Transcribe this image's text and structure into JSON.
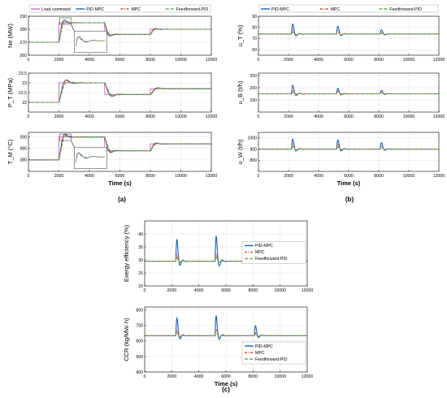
{
  "panel_labels": [
    "(a)",
    "(b)",
    "(c)"
  ],
  "chart_data": [
    {
      "id": "ne",
      "type": "line",
      "group": "a",
      "xlabel": "",
      "ylabel": "Ne (MW)",
      "xlim": [
        0,
        12000
      ],
      "ylim": [
        260,
        290
      ],
      "xticks": [
        0,
        2000,
        4000,
        6000,
        8000,
        10000,
        12000
      ],
      "yticks": [
        260,
        270,
        280,
        290
      ],
      "grid": true,
      "legend": "top",
      "inset": true,
      "steps": [
        [
          0,
          270
        ],
        [
          2000,
          285
        ],
        [
          5000,
          276
        ],
        [
          8000,
          280
        ]
      ],
      "series": [
        {
          "name": "Load command",
          "color": "#d066d0",
          "dash": "",
          "style": "command"
        },
        {
          "name": "PID-MPC",
          "color": "#1f5fb4",
          "dash": "",
          "style": "resp",
          "lag": 180,
          "over": 0.22
        },
        {
          "name": "MPC",
          "color": "#c8502c",
          "dash": "3,1.5,1,1.5",
          "style": "resp",
          "lag": 160,
          "over": 0.12
        },
        {
          "name": "Feedforward-PID",
          "color": "#6aa84f",
          "dash": "4,2",
          "style": "resp",
          "lag": 220,
          "over": 0.06
        }
      ]
    },
    {
      "id": "pt",
      "type": "line",
      "group": "a",
      "xlabel": "",
      "ylabel": "P_T (MPa)",
      "xlim": [
        0,
        12000
      ],
      "ylim": [
        21.5,
        23.5
      ],
      "xticks": [
        0,
        2000,
        4000,
        6000,
        8000,
        10000,
        12000
      ],
      "yticks": [
        22,
        22.5,
        23,
        23.5
      ],
      "grid": true,
      "steps": [
        [
          0,
          22
        ],
        [
          2000,
          23
        ],
        [
          5000,
          22.4
        ],
        [
          8000,
          22.7
        ]
      ],
      "series": [
        {
          "name": "Load command",
          "color": "#d066d0",
          "dash": "",
          "style": "command"
        },
        {
          "name": "PID-MPC",
          "color": "#1f5fb4",
          "dash": "",
          "style": "resp",
          "lag": 250,
          "over": 0.25
        },
        {
          "name": "MPC",
          "color": "#c8502c",
          "dash": "3,1.5,1,1.5",
          "style": "resp",
          "lag": 230,
          "over": 0.12
        },
        {
          "name": "Feedforward-PID",
          "color": "#6aa84f",
          "dash": "4,2",
          "style": "resp",
          "lag": 300,
          "over": 0.05
        }
      ]
    },
    {
      "id": "tm",
      "type": "line",
      "group": "a",
      "xlabel": "Time (s)",
      "ylabel": "T_M (°C)",
      "xlim": [
        0,
        12000
      ],
      "ylim": [
        375,
        392
      ],
      "xticks": [
        0,
        2000,
        4000,
        6000,
        8000,
        10000,
        12000
      ],
      "yticks": [
        380,
        385,
        390
      ],
      "grid": true,
      "inset": true,
      "steps": [
        [
          0,
          380
        ],
        [
          2000,
          390
        ],
        [
          5000,
          384
        ],
        [
          8000,
          387
        ]
      ],
      "series": [
        {
          "name": "Load command",
          "color": "#d066d0",
          "dash": "",
          "style": "command"
        },
        {
          "name": "PID-MPC",
          "color": "#1f5fb4",
          "dash": "",
          "style": "resp",
          "lag": 200,
          "over": 0.15
        },
        {
          "name": "MPC",
          "color": "#c8502c",
          "dash": "3,1.5,1,1.5",
          "style": "resp",
          "lag": 190,
          "over": 0.08
        },
        {
          "name": "Feedforward-PID",
          "color": "#6aa84f",
          "dash": "4,2",
          "style": "resp",
          "lag": 260,
          "over": 0.04
        }
      ]
    },
    {
      "id": "ut",
      "type": "line",
      "group": "b",
      "xlabel": "",
      "ylabel": "u_T (%)",
      "xlim": [
        0,
        12000
      ],
      "ylim": [
        55,
        90
      ],
      "xticks": [
        0,
        2000,
        4000,
        6000,
        8000,
        10000,
        12000
      ],
      "yticks": [
        60,
        70,
        80,
        90
      ],
      "grid": true,
      "legend": "top",
      "base": 74,
      "spikes": [
        [
          2200,
          14
        ],
        [
          5200,
          11
        ],
        [
          8100,
          6
        ]
      ],
      "series": [
        {
          "name": "PID-MPC",
          "color": "#1f5fb4",
          "dash": "",
          "style": "spike",
          "amp": 1.0
        },
        {
          "name": "MPC",
          "color": "#c8502c",
          "dash": "3,1.5,1,1.5",
          "style": "spike",
          "amp": 0.45
        },
        {
          "name": "Feedforward-PID",
          "color": "#6aa84f",
          "dash": "4,2",
          "style": "spike",
          "amp": 0.2
        }
      ]
    },
    {
      "id": "ub",
      "type": "line",
      "group": "b",
      "xlabel": "",
      "ylabel": "u_B (t/h)",
      "xlim": [
        0,
        12000
      ],
      "ylim": [
        100,
        260
      ],
      "xticks": [
        0,
        2000,
        4000,
        6000,
        8000,
        10000,
        12000
      ],
      "yticks": [
        150,
        200,
        250
      ],
      "grid": true,
      "base": 175,
      "spikes": [
        [
          2200,
          55
        ],
        [
          5200,
          35
        ],
        [
          8100,
          22
        ]
      ],
      "series": [
        {
          "name": "PID-MPC",
          "color": "#1f5fb4",
          "dash": "",
          "style": "spike",
          "amp": 1.0
        },
        {
          "name": "MPC",
          "color": "#c8502c",
          "dash": "3,1.5,1,1.5",
          "style": "spike",
          "amp": 0.45
        },
        {
          "name": "Feedforward-PID",
          "color": "#6aa84f",
          "dash": "4,2",
          "style": "spike",
          "amp": 0.2
        }
      ]
    },
    {
      "id": "uw",
      "type": "line",
      "group": "b",
      "xlabel": "Time (s)",
      "ylabel": "u_W (t/h)",
      "xlim": [
        0,
        12000
      ],
      "ylim": [
        700,
        1050
      ],
      "xticks": [
        0,
        2000,
        4000,
        6000,
        8000,
        10000,
        12000
      ],
      "yticks": [
        800,
        900,
        1000
      ],
      "grid": true,
      "base": 900,
      "spikes": [
        [
          2200,
          140
        ],
        [
          5200,
          130
        ],
        [
          8100,
          90
        ]
      ],
      "series": [
        {
          "name": "PID-MPC",
          "color": "#1f5fb4",
          "dash": "",
          "style": "spike",
          "amp": 1.0
        },
        {
          "name": "MPC",
          "color": "#c8502c",
          "dash": "3,1.5,1,1.5",
          "style": "spike",
          "amp": 0.5
        },
        {
          "name": "Feedforward-PID",
          "color": "#6aa84f",
          "dash": "4,2",
          "style": "spike",
          "amp": 0.25
        }
      ]
    },
    {
      "id": "ee",
      "type": "line",
      "group": "c",
      "xlabel": "",
      "ylabel": "Exergy efficiency (%)",
      "xlim": [
        0,
        12000
      ],
      "ylim": [
        20,
        45
      ],
      "xticks": [
        0,
        2000,
        4000,
        6000,
        8000,
        10000,
        12000
      ],
      "yticks": [
        20,
        25,
        30,
        35,
        40
      ],
      "grid": true,
      "legend": "inside-right",
      "base": 29.5,
      "spikes": [
        [
          2300,
          13
        ],
        [
          5200,
          15
        ],
        [
          8100,
          6
        ]
      ],
      "series": [
        {
          "name": "PID-MPC",
          "color": "#1f5fb4",
          "dash": "",
          "style": "spike",
          "amp": 1.0
        },
        {
          "name": "MPC",
          "color": "#c8502c",
          "dash": "3,1.5,1,1.5",
          "style": "spike",
          "amp": 0.3
        },
        {
          "name": "Feedforward-PID",
          "color": "#6aa84f",
          "dash": "4,2",
          "style": "spike",
          "amp": 0.15
        }
      ]
    },
    {
      "id": "ccr",
      "type": "line",
      "group": "c",
      "xlabel": "Time (s)",
      "ylabel": "CCR (kg/MW·h)",
      "xlim": [
        0,
        12000
      ],
      "ylim": [
        400,
        820
      ],
      "xticks": [
        0,
        2000,
        4000,
        6000,
        8000,
        10000,
        12000
      ],
      "yticks": [
        400,
        500,
        600,
        700,
        800
      ],
      "grid": true,
      "legend": "inside-bottom-right",
      "base": 635,
      "spikes": [
        [
          2300,
          180
        ],
        [
          5200,
          200
        ],
        [
          8100,
          100
        ]
      ],
      "series": [
        {
          "name": "PID-MPC",
          "color": "#1f5fb4",
          "dash": "",
          "style": "spike",
          "amp": 1.0
        },
        {
          "name": "MPC",
          "color": "#c8502c",
          "dash": "3,1.5,1,1.5",
          "style": "spike",
          "amp": 0.3
        },
        {
          "name": "Feedforward-PID",
          "color": "#6aa84f",
          "dash": "4,2",
          "style": "spike",
          "amp": 0.15
        }
      ]
    }
  ]
}
